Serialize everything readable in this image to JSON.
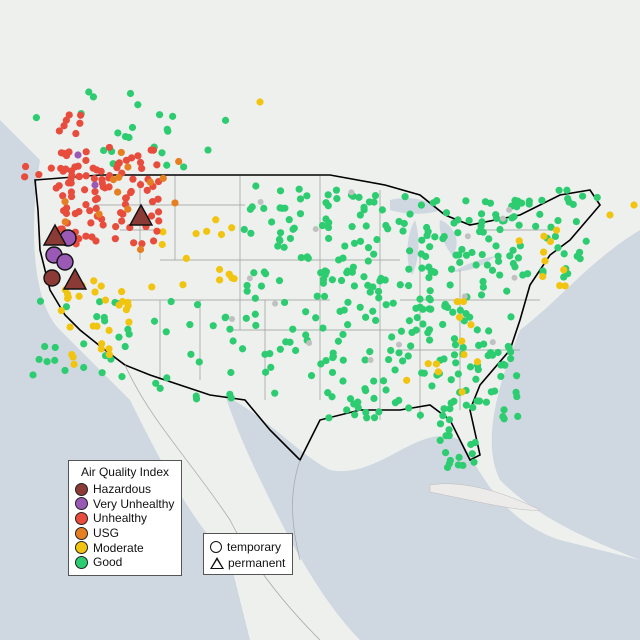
{
  "legend": {
    "title": "Air Quality Index",
    "items": [
      {
        "label": "Hazardous",
        "color": "#8b3a36"
      },
      {
        "label": "Very Unhealthy",
        "color": "#9b59b6"
      },
      {
        "label": "Unhealthy",
        "color": "#e74c3c"
      },
      {
        "label": "USG",
        "color": "#e67e22"
      },
      {
        "label": "Moderate",
        "color": "#f1c40f"
      },
      {
        "label": "Good",
        "color": "#2ecc71"
      }
    ],
    "monitor_types": {
      "temporary": "temporary",
      "permanent": "permanent"
    }
  },
  "colors": {
    "land": "#ecebe9",
    "water": "#cfd8e0",
    "border": "#000000",
    "state_line": "#9a9a9a",
    "no_data": "#c0c0c0"
  }
}
